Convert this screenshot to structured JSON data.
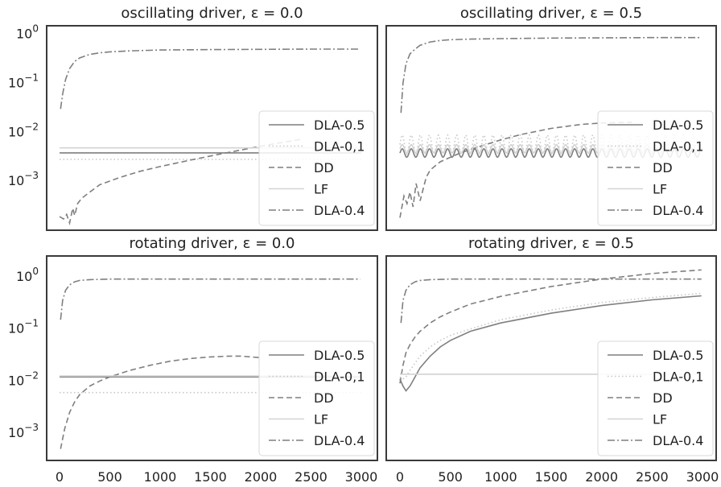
{
  "chart_data": [
    {
      "type": "line",
      "title": "oscillating driver, ε = 0.0",
      "yscale": "log",
      "xlim": [
        0,
        3000
      ],
      "ylim": [
        0.0001,
        1.5
      ],
      "xticks": [],
      "yticks": [
        {
          "value": 1,
          "label": "10^0"
        },
        {
          "value": 0.1,
          "label": "10^-1"
        },
        {
          "value": 0.01,
          "label": "10^-2"
        },
        {
          "value": 0.001,
          "label": "10^-3"
        }
      ],
      "legend": "lower right",
      "grid": false,
      "series": [
        {
          "name": "DLA-0.5",
          "style": "solid",
          "color": "#7f7f7f",
          "x": [
            0,
            3000
          ],
          "y": [
            0.0038,
            0.0038
          ]
        },
        {
          "name": "DLA-0,1",
          "style": "dotted",
          "color": "#c7c7c7",
          "x": [
            0,
            3000
          ],
          "y": [
            0.0028,
            0.0028
          ]
        },
        {
          "name": "DD",
          "style": "dashed",
          "color": "#7f7f7f",
          "x": [
            0,
            40,
            70,
            100,
            130,
            150,
            180,
            220,
            300,
            400,
            600,
            800,
            1000,
            1300,
            1600,
            2000,
            2400
          ],
          "y": [
            0.00019,
            0.00017,
            0.00021,
            0.00014,
            0.00028,
            0.0002,
            0.00035,
            0.00045,
            0.0006,
            0.00085,
            0.0012,
            0.0016,
            0.002,
            0.0027,
            0.0036,
            0.0052,
            0.0072
          ]
        },
        {
          "name": "LF",
          "style": "solid",
          "color": "#d3d3d3",
          "x": [
            0,
            3000
          ],
          "y": [
            0.0048,
            0.0048
          ]
        },
        {
          "name": "DLA-0.4",
          "style": "dashdot",
          "color": "#7f7f7f",
          "x": [
            10,
            30,
            60,
            100,
            150,
            200,
            300,
            400,
            500,
            700,
            1000,
            1500,
            2000,
            2500,
            2990
          ],
          "y": [
            0.03,
            0.06,
            0.12,
            0.2,
            0.28,
            0.33,
            0.39,
            0.42,
            0.44,
            0.46,
            0.48,
            0.49,
            0.495,
            0.5,
            0.5
          ]
        }
      ]
    },
    {
      "type": "line",
      "title": "oscillating driver, ε = 0.5",
      "yscale": "log",
      "xlim": [
        0,
        3000
      ],
      "ylim": [
        0.0001,
        1.5
      ],
      "xticks": [],
      "yticks": [],
      "legend": "lower right",
      "grid": false,
      "series": [
        {
          "name": "DLA-0.5",
          "style": "solid",
          "color": "#7f7f7f",
          "x": [
            0,
            3000
          ],
          "y": [
            0.0031,
            0.0046
          ],
          "oscillate_period": 90
        },
        {
          "name": "DLA-0,1",
          "style": "dotted",
          "color": "#c7c7c7",
          "x": [
            0,
            3000
          ],
          "y": [
            0.0036,
            0.0088
          ],
          "oscillate_period": 90
        },
        {
          "name": "DD",
          "style": "dashed",
          "color": "#7f7f7f",
          "x": [
            0,
            40,
            70,
            100,
            130,
            160,
            200,
            260,
            300,
            400,
            600,
            800,
            1000,
            1200,
            1500,
            1800,
            2000,
            2300
          ],
          "y": [
            0.00018,
            0.0005,
            0.00035,
            0.0006,
            0.0003,
            0.0009,
            0.0004,
            0.0012,
            0.0017,
            0.0025,
            0.0038,
            0.0052,
            0.007,
            0.009,
            0.012,
            0.0145,
            0.0155,
            0.016
          ]
        },
        {
          "name": "LF",
          "style": "solid",
          "color": "#d3d3d3",
          "x": [
            0,
            3000
          ],
          "y": [
            0.0038,
            0.0056
          ],
          "oscillate_period": 90
        },
        {
          "name": "DLA-0.4",
          "style": "dashdot",
          "color": "#7f7f7f",
          "x": [
            10,
            30,
            60,
            100,
            150,
            200,
            300,
            400,
            500,
            700,
            1000,
            1500,
            2000,
            2500,
            2990
          ],
          "y": [
            0.025,
            0.1,
            0.25,
            0.4,
            0.5,
            0.6,
            0.7,
            0.75,
            0.78,
            0.8,
            0.82,
            0.84,
            0.85,
            0.86,
            0.86
          ]
        }
      ]
    },
    {
      "type": "line",
      "title": "rotating driver, ε = 0.0",
      "yscale": "log",
      "xlim": [
        0,
        3000
      ],
      "ylim": [
        0.0003,
        2.5
      ],
      "xticks": [
        0,
        500,
        1000,
        1500,
        2000,
        2500,
        3000
      ],
      "yticks": [
        {
          "value": 1,
          "label": "10^0"
        },
        {
          "value": 0.1,
          "label": "10^-1"
        },
        {
          "value": 0.01,
          "label": "10^-2"
        },
        {
          "value": 0.001,
          "label": "10^-3"
        }
      ],
      "legend": "lower right",
      "grid": false,
      "series": [
        {
          "name": "DLA-0.5",
          "style": "solid",
          "color": "#7f7f7f",
          "x": [
            0,
            3000
          ],
          "y": [
            0.012,
            0.012
          ]
        },
        {
          "name": "DLA-0,1",
          "style": "dotted",
          "color": "#c7c7c7",
          "x": [
            0,
            3000
          ],
          "y": [
            0.006,
            0.006
          ]
        },
        {
          "name": "DD",
          "style": "dashed",
          "color": "#7f7f7f",
          "x": [
            10,
            50,
            100,
            150,
            200,
            300,
            400,
            500,
            700,
            900,
            1100,
            1300,
            1500,
            1700,
            1800,
            1900,
            2000
          ],
          "y": [
            0.0005,
            0.0012,
            0.0025,
            0.004,
            0.0055,
            0.008,
            0.01,
            0.012,
            0.016,
            0.02,
            0.024,
            0.027,
            0.029,
            0.03,
            0.03,
            0.029,
            0.028
          ]
        },
        {
          "name": "LF",
          "style": "solid",
          "color": "#d3d3d3",
          "x": [
            0,
            3000
          ],
          "y": [
            0.0125,
            0.0125
          ]
        },
        {
          "name": "DLA-0.4",
          "style": "dashdot",
          "color": "#7f7f7f",
          "x": [
            10,
            30,
            60,
            100,
            150,
            200,
            300,
            500,
            1000,
            2000,
            2990
          ],
          "y": [
            0.15,
            0.35,
            0.55,
            0.7,
            0.8,
            0.85,
            0.88,
            0.9,
            0.9,
            0.9,
            0.9
          ]
        }
      ]
    },
    {
      "type": "line",
      "title": "rotating driver, ε = 0.5",
      "yscale": "log",
      "xlim": [
        0,
        3000
      ],
      "ylim": [
        0.0003,
        2.5
      ],
      "xticks": [
        0,
        500,
        1000,
        1500,
        2000,
        2500,
        3000
      ],
      "yticks": [],
      "legend": "lower right",
      "grid": false,
      "series": [
        {
          "name": "DLA-0.5",
          "style": "solid",
          "color": "#7f7f7f",
          "x": [
            0,
            30,
            60,
            100,
            150,
            200,
            300,
            400,
            500,
            700,
            1000,
            1500,
            2000,
            2500,
            2990
          ],
          "y": [
            0.011,
            0.008,
            0.0065,
            0.008,
            0.012,
            0.018,
            0.03,
            0.045,
            0.06,
            0.09,
            0.13,
            0.2,
            0.28,
            0.36,
            0.43
          ]
        },
        {
          "name": "DLA-0,1",
          "style": "dotted",
          "color": "#c7c7c7",
          "x": [
            0,
            30,
            60,
            100,
            150,
            200,
            300,
            400,
            500,
            700,
            1000,
            1500,
            2000,
            2500,
            2990
          ],
          "y": [
            0.012,
            0.011,
            0.012,
            0.016,
            0.022,
            0.03,
            0.045,
            0.06,
            0.075,
            0.1,
            0.15,
            0.23,
            0.32,
            0.4,
            0.48
          ]
        },
        {
          "name": "DD",
          "style": "dashed",
          "color": "#7f7f7f",
          "x": [
            0,
            30,
            60,
            100,
            150,
            200,
            300,
            400,
            500,
            700,
            1000,
            1500,
            2000,
            2500,
            2990
          ],
          "y": [
            0.009,
            0.02,
            0.035,
            0.05,
            0.07,
            0.09,
            0.13,
            0.17,
            0.21,
            0.3,
            0.42,
            0.65,
            0.9,
            1.15,
            1.35
          ]
        },
        {
          "name": "LF",
          "style": "solid",
          "color": "#d3d3d3",
          "x": [
            0,
            3000
          ],
          "y": [
            0.0135,
            0.0135
          ]
        },
        {
          "name": "DLA-0.4",
          "style": "dashdot",
          "color": "#7f7f7f",
          "x": [
            10,
            30,
            60,
            100,
            150,
            200,
            300,
            500,
            1000,
            2000,
            2990
          ],
          "y": [
            0.13,
            0.35,
            0.55,
            0.7,
            0.8,
            0.85,
            0.88,
            0.9,
            0.9,
            0.9,
            0.9
          ]
        }
      ]
    }
  ]
}
